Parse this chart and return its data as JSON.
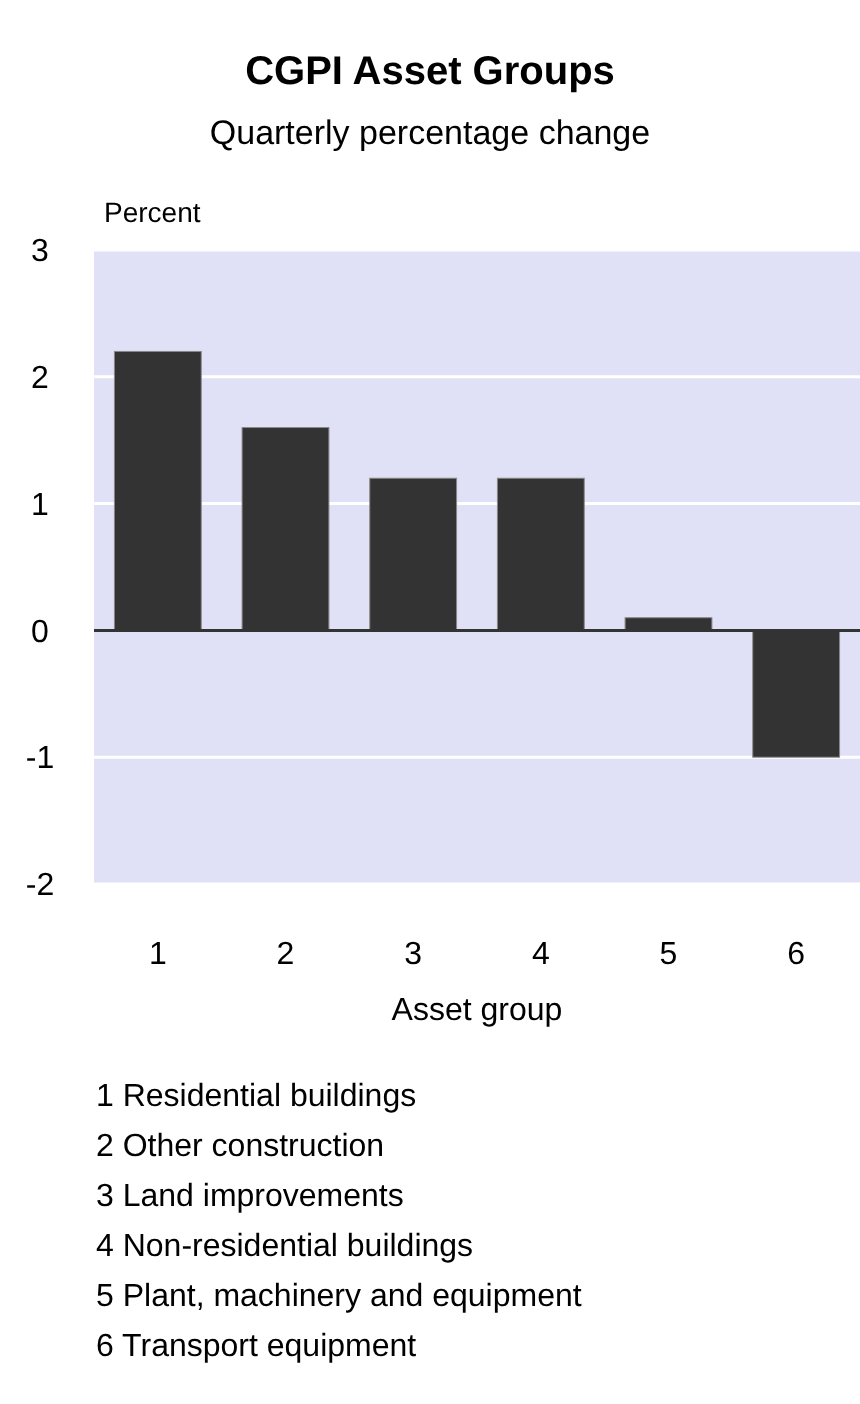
{
  "chart_data": {
    "type": "bar",
    "title": "CGPI Asset Groups",
    "subtitle": "Quarterly percentage change",
    "ylabel": "Percent",
    "xlabel": "Asset group",
    "categories": [
      "1",
      "2",
      "3",
      "4",
      "5",
      "6"
    ],
    "values": [
      2.2,
      1.6,
      1.2,
      1.2,
      0.1,
      -1.0
    ],
    "color": "#333333",
    "ylim": [
      -2,
      3
    ],
    "yticks": [
      -2,
      -1,
      0,
      1,
      2,
      3
    ],
    "grid": "y",
    "annotations": [
      "1 Residential buildings",
      "2 Other construction",
      "3 Land improvements",
      "4 Non-residential buildings",
      "5 Plant, machinery and equipment",
      "6 Transport equipment"
    ]
  }
}
